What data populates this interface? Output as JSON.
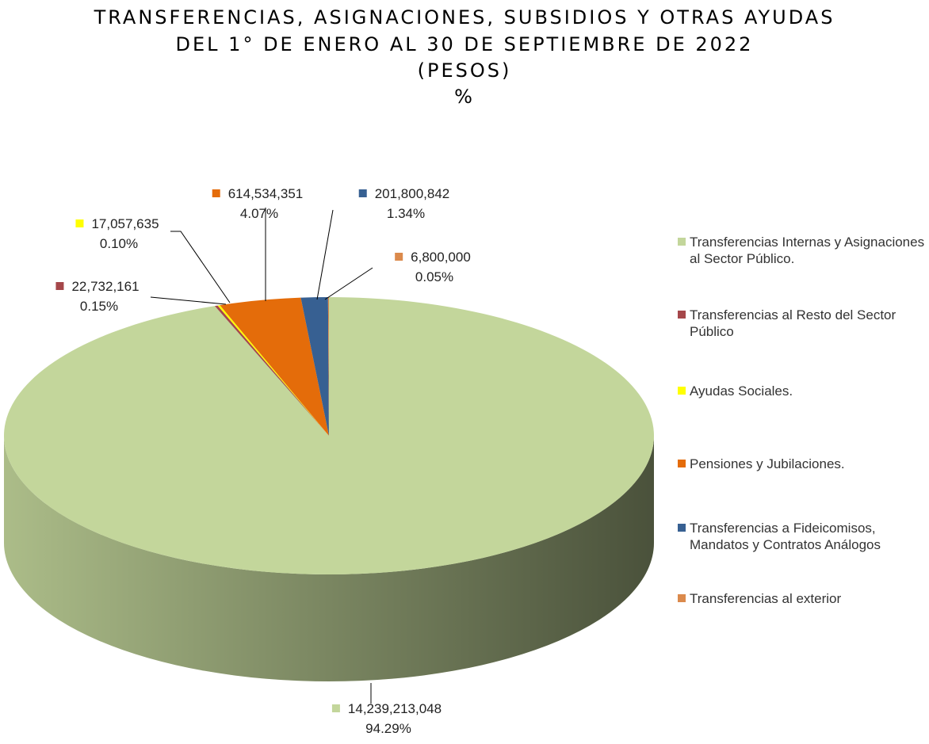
{
  "chart_data": {
    "type": "pie",
    "title": [
      "TRANSFERENCIAS, ASIGNACIONES, SUBSIDIOS Y OTRAS AYUDAS",
      "DEL 1° DE ENERO AL 30 DE SEPTIEMBRE DE 2022",
      "(PESOS)",
      "%"
    ],
    "categories": [
      "Transferencias Internas y Asignaciones al Sector Público.",
      "Transferencias al Resto del Sector Público",
      "Ayudas Sociales.",
      "Pensiones y Jubilaciones.",
      "Transferencias a Fideicomisos, Mandatos y Contratos Análogos",
      "Transferencias al exterior"
    ],
    "values": [
      14239213048,
      22732161,
      17057635,
      614534351,
      201800842,
      6800000
    ],
    "value_labels": [
      "14,239,213,048",
      "22,732,161",
      "17,057,635",
      "614,534,351",
      "201,800,842",
      "6,800,000"
    ],
    "percent_labels": [
      "94.29%",
      "0.15%",
      "0.10%",
      "4.07%",
      "1.34%",
      "0.05%"
    ],
    "colors": [
      "#c3d69b",
      "#a5474a",
      "#ffff00",
      "#e46c0a",
      "#376092",
      "#db8a4c"
    ],
    "legend": "right"
  }
}
